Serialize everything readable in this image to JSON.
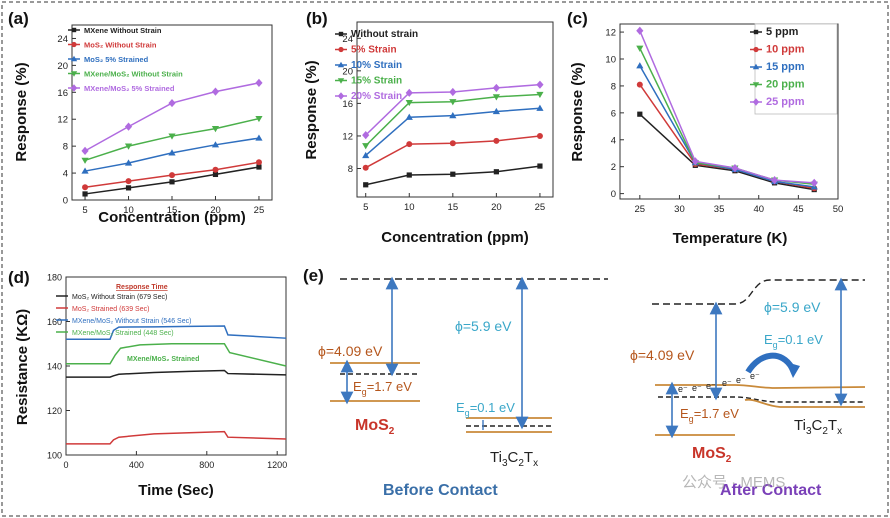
{
  "figure": {
    "colors": {
      "black": "#222222",
      "red": "#d03a3a",
      "blue": "#2f6fbf",
      "green": "#4bb04b",
      "purple": "#b06be0",
      "orange": "#c98a3a",
      "arrow_blue": "#3d78c0",
      "caption_blue": "#3a6fa8",
      "caption_purple": "#7a40b8"
    }
  },
  "panel_a": {
    "label": "(a)",
    "chart_data": {
      "type": "line",
      "xlabel": "Concentration (ppm)",
      "ylabel": "Response (%)",
      "x": [
        5,
        10,
        15,
        20,
        25
      ],
      "xlim": [
        3.5,
        26.5
      ],
      "ylim": [
        0,
        26
      ],
      "xticks": [
        "5",
        "10",
        "15",
        "20",
        "25"
      ],
      "yticks": [
        "0",
        "4",
        "8",
        "12",
        "16",
        "20",
        "24"
      ],
      "series": [
        {
          "name": "MXene Without Strain",
          "color": "#222222",
          "marker": "square",
          "values": [
            0.9,
            1.8,
            2.7,
            3.8,
            4.9
          ]
        },
        {
          "name": "MoS₂ Without Strain",
          "color": "#d03a3a",
          "marker": "circle",
          "values": [
            1.9,
            2.8,
            3.7,
            4.5,
            5.6
          ]
        },
        {
          "name": "MoS₂ 5% Strained",
          "color": "#2f6fbf",
          "marker": "triangle",
          "values": [
            4.3,
            5.5,
            7.0,
            8.2,
            9.2
          ]
        },
        {
          "name": "MXene/MoS₂ Without Strain",
          "color": "#4bb04b",
          "marker": "tri-down",
          "values": [
            5.9,
            8.0,
            9.5,
            10.6,
            12.1
          ]
        },
        {
          "name": "MXene/MoS₂ 5% Strained",
          "color": "#b06be0",
          "marker": "diamond",
          "values": [
            7.3,
            10.9,
            14.4,
            16.1,
            17.4
          ]
        }
      ]
    }
  },
  "panel_b": {
    "label": "(b)",
    "chart_data": {
      "type": "line",
      "xlabel": "Concentration (ppm)",
      "ylabel": "Response (%)",
      "x": [
        5,
        10,
        15,
        20,
        25
      ],
      "xlim": [
        4,
        26.5
      ],
      "ylim": [
        4.5,
        26
      ],
      "xticks": [
        "5",
        "10",
        "15",
        "20",
        "25"
      ],
      "yticks": [
        "8",
        "12",
        "16",
        "20",
        "24"
      ],
      "series": [
        {
          "name": "Without strain",
          "color": "#222222",
          "marker": "square",
          "values": [
            6.0,
            7.2,
            7.3,
            7.6,
            8.3
          ]
        },
        {
          "name": "5% Strain",
          "color": "#d03a3a",
          "marker": "circle",
          "values": [
            8.1,
            11.0,
            11.1,
            11.4,
            12.0
          ]
        },
        {
          "name": "10% Strain",
          "color": "#2f6fbf",
          "marker": "triangle",
          "values": [
            9.6,
            14.3,
            14.5,
            15.0,
            15.4
          ]
        },
        {
          "name": "15% Strain",
          "color": "#4bb04b",
          "marker": "tri-down",
          "values": [
            10.8,
            16.1,
            16.2,
            16.8,
            17.1
          ]
        },
        {
          "name": "20% Strain",
          "color": "#b06be0",
          "marker": "diamond",
          "values": [
            12.1,
            17.3,
            17.4,
            17.9,
            18.3
          ]
        }
      ]
    }
  },
  "panel_c": {
    "label": "(c)",
    "chart_data": {
      "type": "line",
      "xlabel": "Temperature (K)",
      "ylabel": "Response (%)",
      "x": [
        25,
        32,
        37,
        42,
        47
      ],
      "xlim": [
        22.5,
        50
      ],
      "ylim": [
        -0.4,
        12.6
      ],
      "xticks": [
        "25",
        "30",
        "35",
        "40",
        "45",
        "50"
      ],
      "yticks": [
        "0",
        "2",
        "4",
        "6",
        "8",
        "10",
        "12"
      ],
      "series": [
        {
          "name": "5  ppm",
          "color": "#222222",
          "marker": "square",
          "values": [
            5.9,
            2.1,
            1.7,
            0.8,
            0.3
          ]
        },
        {
          "name": "10 ppm",
          "color": "#d03a3a",
          "marker": "circle",
          "values": [
            8.1,
            2.2,
            1.8,
            0.9,
            0.4
          ]
        },
        {
          "name": "15 ppm",
          "color": "#2f6fbf",
          "marker": "triangle",
          "values": [
            9.5,
            2.3,
            1.8,
            0.9,
            0.5
          ]
        },
        {
          "name": "20 ppm",
          "color": "#4bb04b",
          "marker": "tri-down",
          "values": [
            10.8,
            2.3,
            1.9,
            1.0,
            0.7
          ]
        },
        {
          "name": "25 ppm",
          "color": "#b06be0",
          "marker": "diamond",
          "values": [
            12.1,
            2.4,
            1.9,
            1.0,
            0.8
          ]
        }
      ]
    }
  },
  "panel_d": {
    "label": "(d)",
    "chart_data": {
      "type": "line",
      "xlabel": "Time (Sec)",
      "ylabel": "Resistance (KΩ)",
      "legend_title": "Response Time",
      "annotation": "MXene/MoS₂ Strained",
      "xlim": [
        0,
        1250
      ],
      "ylim": [
        100,
        180
      ],
      "xticks": [
        "0",
        "400",
        "800",
        "1200"
      ],
      "yticks": [
        "100",
        "120",
        "140",
        "160",
        "180"
      ],
      "series": [
        {
          "name": "MoS₂ Without Strain (679 Sec)",
          "color": "#222222",
          "x": [
            0,
            250,
            270,
            300,
            500,
            700,
            900,
            920,
            1250
          ],
          "values": [
            135,
            135,
            135.6,
            136.3,
            137.1,
            137.6,
            138,
            136.6,
            136
          ]
        },
        {
          "name": "MoS₂ Strained (639 Sec)",
          "color": "#d03a3a",
          "x": [
            0,
            250,
            270,
            300,
            500,
            700,
            900,
            920,
            1250
          ],
          "values": [
            105,
            105,
            106.8,
            108,
            109.5,
            110,
            110.5,
            108,
            107.2
          ]
        },
        {
          "name": "MXene/MoS₂ Without Strain (546 Sec)",
          "color": "#2f6fbf",
          "x": [
            0,
            250,
            270,
            300,
            500,
            700,
            900,
            920,
            1250
          ],
          "values": [
            152,
            152,
            156,
            157.5,
            157.6,
            157.8,
            158,
            154,
            152.5
          ]
        },
        {
          "name": "MXene/MoS₂ Strained (448 Sec)",
          "color": "#4bb04b",
          "x": [
            0,
            250,
            280,
            310,
            420,
            600,
            900,
            930,
            1250
          ],
          "values": [
            141,
            141,
            145,
            148,
            149.5,
            150,
            150,
            146,
            140
          ]
        }
      ]
    }
  },
  "panel_e": {
    "label": "(e)",
    "before": {
      "caption": "Before Contact",
      "mos2_work_function": "ϕ=4.09 eV",
      "mos2_bandgap": "E",
      "mos2_bandgap_sub": "g",
      "mos2_bandgap_val": "=1.7 eV",
      "mos2_name": "MoS",
      "mos2_sub": "2",
      "mxene_work_function": "ϕ=5.9 eV",
      "mxene_bandgap": "E",
      "mxene_bandgap_sub": "g",
      "mxene_bandgap_val": "=0.1 eV",
      "mxene_name_parts": [
        "Ti",
        "3",
        "C",
        "2",
        "T",
        "x"
      ]
    },
    "after": {
      "caption": "After Contact",
      "mos2_work_function": "ϕ=4.09 eV",
      "mos2_bandgap": "E",
      "mos2_bandgap_sub": "g",
      "mos2_bandgap_val": "=1.7 eV",
      "mos2_name": "MoS",
      "mos2_sub": "2",
      "mxene_work_function": "ϕ=5.9 eV",
      "mxene_bandgap": "E",
      "mxene_bandgap_sub": "g",
      "mxene_bandgap_val": "=0.1 eV",
      "mxene_name_parts": [
        "Ti",
        "3",
        "C",
        "2",
        "T",
        "x"
      ],
      "electron_label": "e⁻"
    },
    "watermark": "公众号 · MEMS"
  }
}
